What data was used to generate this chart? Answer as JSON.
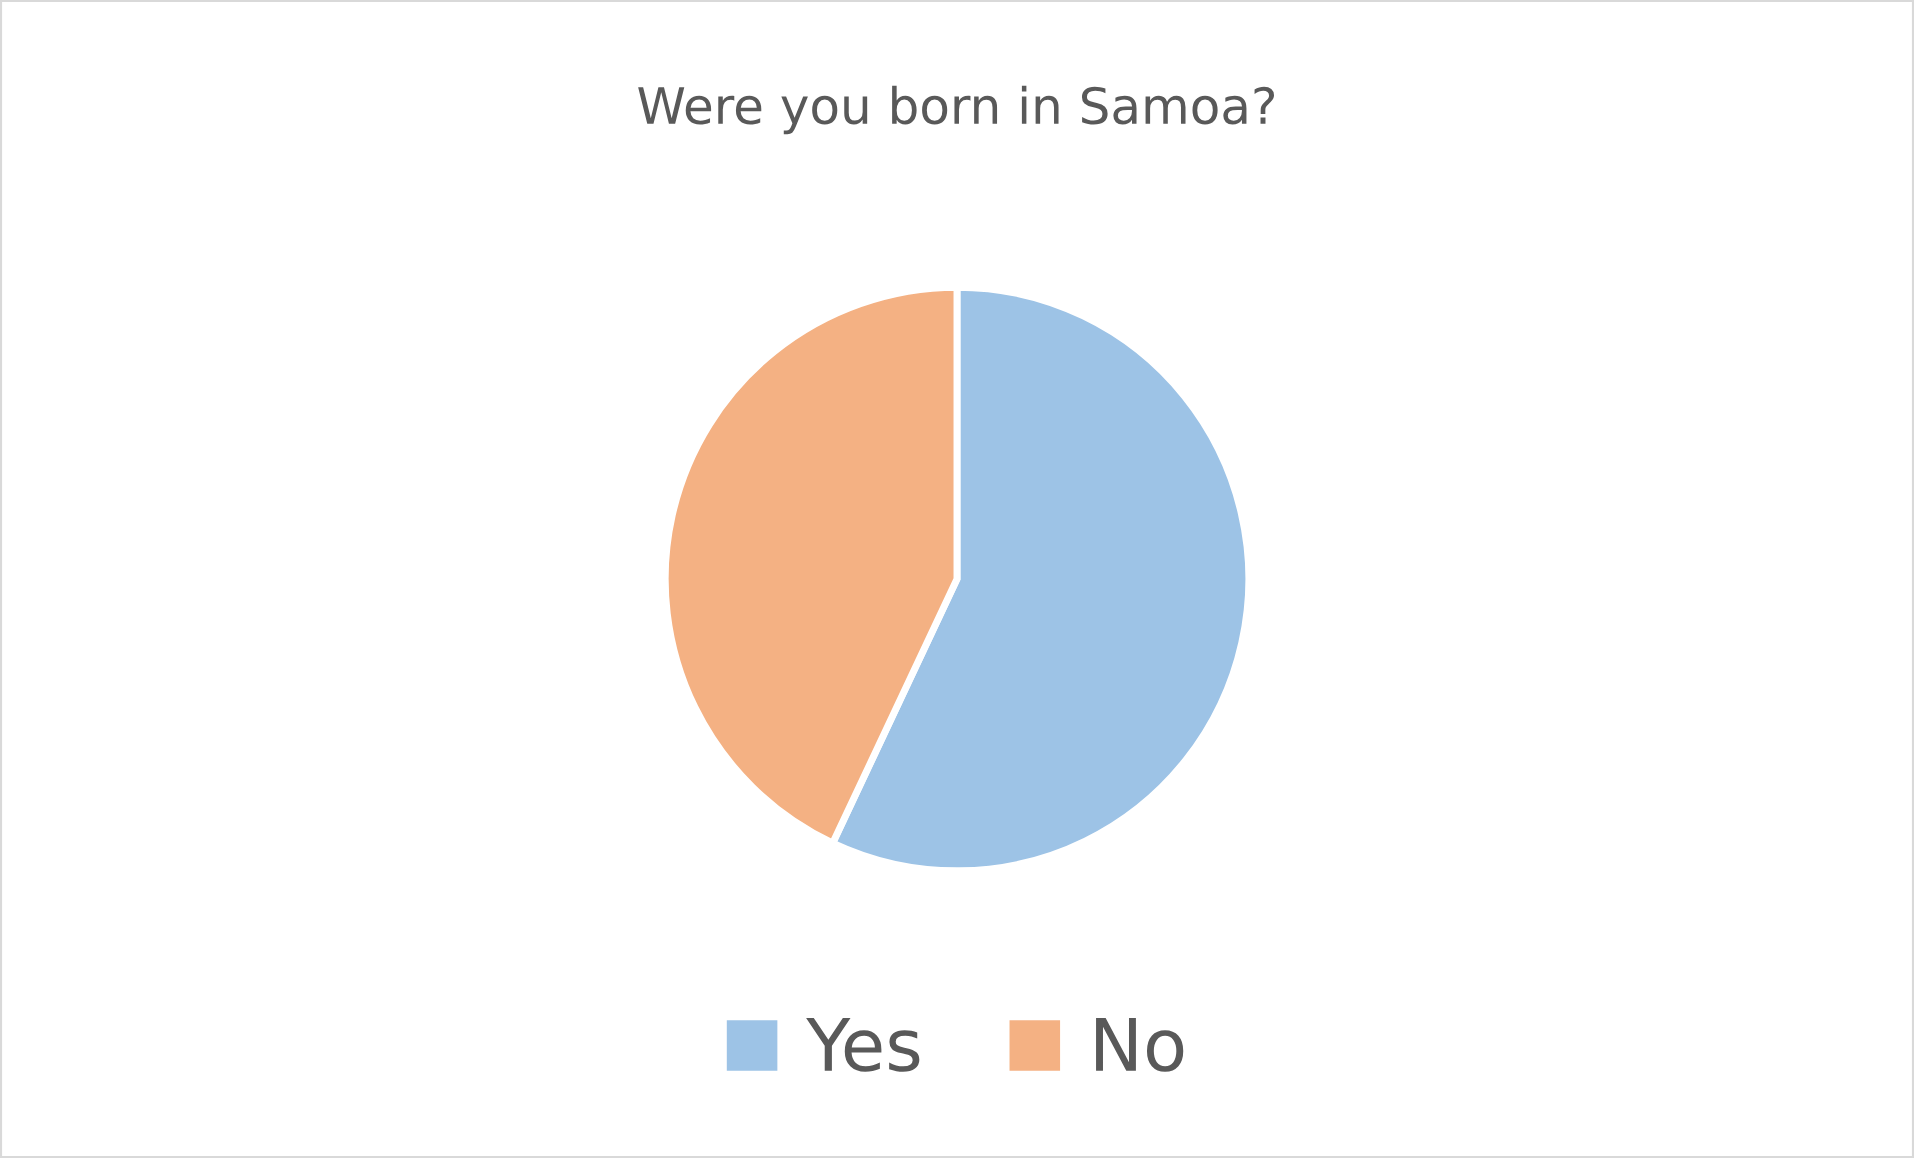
{
  "chart_data": {
    "type": "pie",
    "title": "Were you born in Samoa?",
    "categories": [
      "Yes",
      "No"
    ],
    "values": [
      57,
      43
    ],
    "colors": [
      "#9dc3e6",
      "#f4b183"
    ],
    "legend": "bottom"
  }
}
